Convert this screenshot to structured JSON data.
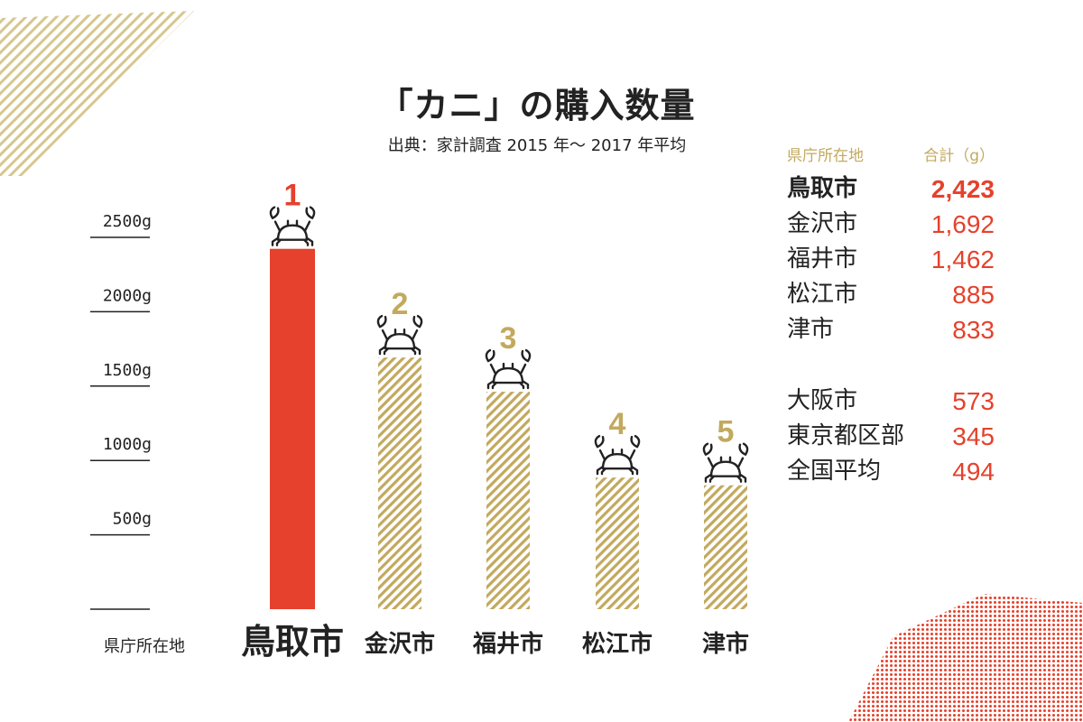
{
  "header": {
    "title": "「カニ」の購入数量",
    "source": "出典：家計調査 2015 年〜 2017 年平均"
  },
  "colors": {
    "accent_red": "#e5412c",
    "gold": "#c2a95e",
    "text": "#222222"
  },
  "chart_data": {
    "type": "bar",
    "categories": [
      "鳥取市",
      "金沢市",
      "福井市",
      "松江市",
      "津市"
    ],
    "values": [
      2423,
      1692,
      1462,
      885,
      833
    ],
    "ranks": [
      "1",
      "2",
      "3",
      "4",
      "5"
    ],
    "xlabel": "県庁所在地",
    "ylabel": "",
    "ylim": [
      0,
      2500
    ],
    "yticks": [
      {
        "value": 2500,
        "label": "2500g"
      },
      {
        "value": 2000,
        "label": "2000g"
      },
      {
        "value": 1500,
        "label": "1500g"
      },
      {
        "value": 1000,
        "label": "1000g"
      },
      {
        "value": 500,
        "label": "500g"
      },
      {
        "value": 0,
        "label": ""
      }
    ],
    "highlight_index": 0,
    "bar_icon": "crab-icon",
    "grid": false,
    "legend": "none"
  },
  "table": {
    "header_city": "県庁所在地",
    "header_value": "合計（g）",
    "top_rows": [
      {
        "city": "鳥取市",
        "value": "2,423"
      },
      {
        "city": "金沢市",
        "value": "1,692"
      },
      {
        "city": "福井市",
        "value": "1,462"
      },
      {
        "city": "松江市",
        "value": "885"
      },
      {
        "city": "津市",
        "value": "833"
      }
    ],
    "other_rows": [
      {
        "city": "大阪市",
        "value": "573"
      },
      {
        "city": "東京都区部",
        "value": "345"
      },
      {
        "city": "全国平均",
        "value": "494"
      }
    ]
  }
}
